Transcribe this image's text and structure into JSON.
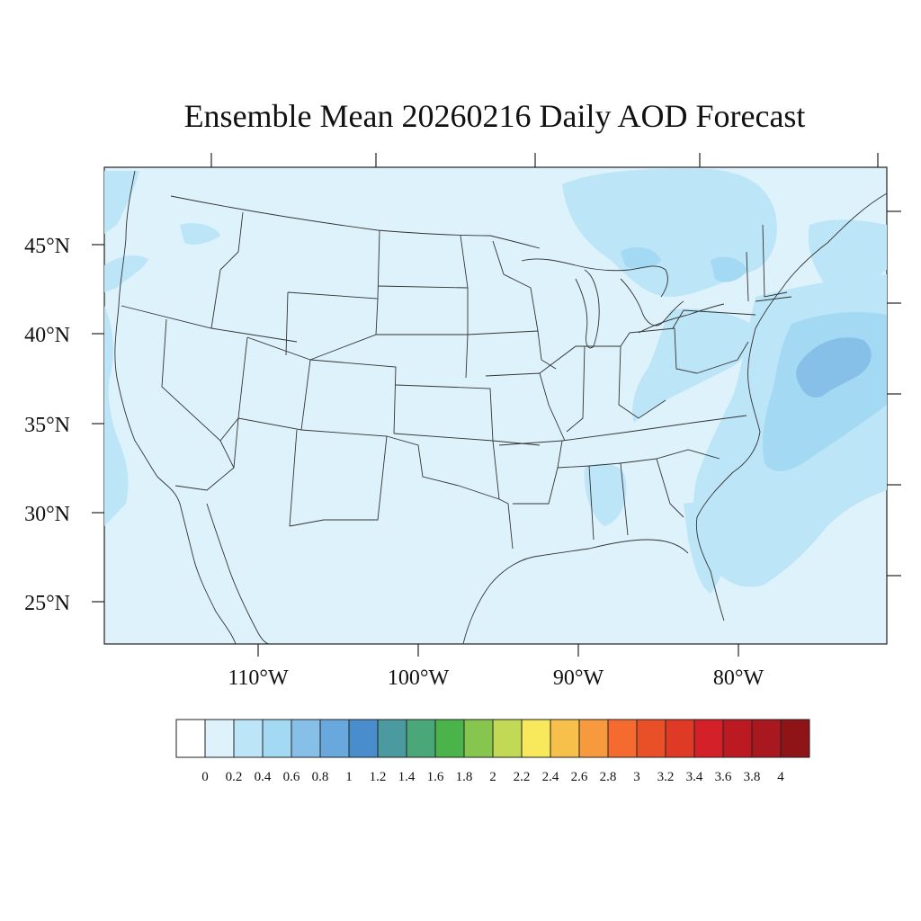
{
  "map": {
    "title": "Ensemble Mean 20260216 Daily AOD Forecast",
    "lat_labels": [
      "45°N",
      "40°N",
      "35°N",
      "30°N",
      "25°N"
    ],
    "lon_labels": [
      "110°W",
      "100°W",
      "90°W",
      "80°W"
    ],
    "colors": {
      "background": "#ffffff",
      "land_fill": "#def2fb",
      "level_02_04": "#bce6f8",
      "level_04_06": "#a4d9f4",
      "level_06_08": "#86c0e8",
      "boundary": "#333333"
    }
  },
  "colorbar": {
    "labels": [
      "0",
      "0.2",
      "0.4",
      "0.6",
      "0.8",
      "1",
      "1.2",
      "1.4",
      "1.6",
      "1.8",
      "2",
      "2.2",
      "2.4",
      "2.6",
      "2.8",
      "3",
      "3.2",
      "3.4",
      "3.6",
      "3.8",
      "4"
    ],
    "colors": [
      "#ffffff",
      "#def2fb",
      "#bce6f8",
      "#a4d9f4",
      "#86c0e8",
      "#68a8dc",
      "#4a8dcc",
      "#4a9aa0",
      "#4aa778",
      "#4ab44a",
      "#86c64e",
      "#c2d956",
      "#f7e85c",
      "#f7c04a",
      "#f79a3e",
      "#f56a2e",
      "#ea5028",
      "#de3a26",
      "#d42028",
      "#bc1a22",
      "#a8181e",
      "#8e1418"
    ]
  }
}
